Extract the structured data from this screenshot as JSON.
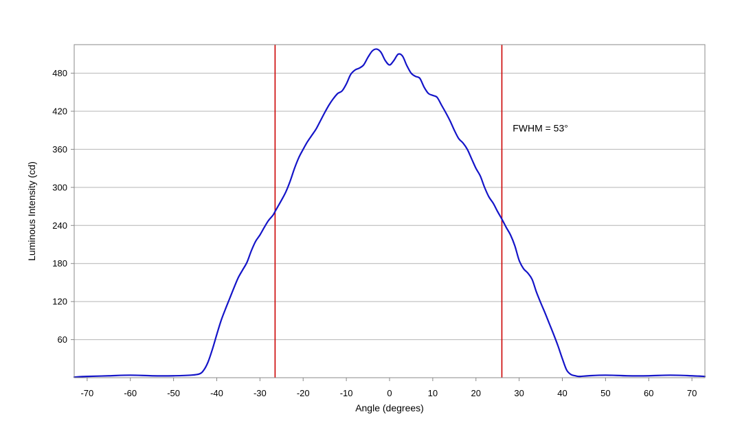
{
  "chart_data": {
    "type": "line",
    "title": "",
    "xlabel": "Angle (degrees)",
    "ylabel": "Luminous Intensity (cd)",
    "xlim": [
      -73,
      73
    ],
    "ylim": [
      0,
      525
    ],
    "x_ticks": [
      -70,
      -60,
      -50,
      -40,
      -30,
      -20,
      -10,
      0,
      10,
      20,
      30,
      40,
      50,
      60,
      70
    ],
    "y_ticks": [
      60,
      120,
      180,
      240,
      300,
      360,
      420,
      480
    ],
    "grid": {
      "horizontal": true,
      "vertical": false
    },
    "series": [
      {
        "color": "#1414c8",
        "x": [
          -73,
          -70,
          -65,
          -60,
          -55,
          -50,
          -46,
          -44,
          -43,
          -42,
          -41,
          -40,
          -39,
          -38,
          -37,
          -36,
          -35,
          -34,
          -33,
          -32,
          -31,
          -30,
          -29,
          -28,
          -27,
          -26.5,
          -26,
          -25,
          -24,
          -23,
          -22,
          -21,
          -20,
          -19,
          -18,
          -17,
          -16,
          -15,
          -14,
          -13,
          -12,
          -11,
          -10,
          -9,
          -8,
          -7,
          -6,
          -5,
          -4,
          -3,
          -2,
          -1,
          0,
          1,
          2,
          3,
          4,
          5,
          6,
          7,
          8,
          9,
          10,
          11,
          12,
          13,
          14,
          15,
          16,
          17,
          18,
          19,
          20,
          21,
          22,
          23,
          24,
          25,
          26,
          27,
          28,
          29,
          30,
          31,
          32,
          33,
          34,
          35,
          36,
          37,
          38,
          39,
          40,
          41,
          42,
          43,
          44,
          46,
          50,
          55,
          60,
          65,
          70,
          73
        ],
        "y": [
          1,
          2,
          3,
          4,
          3,
          3,
          4,
          6,
          12,
          25,
          45,
          68,
          90,
          108,
          125,
          142,
          158,
          170,
          182,
          200,
          215,
          225,
          237,
          248,
          256,
          262,
          268,
          280,
          293,
          310,
          330,
          347,
          360,
          372,
          382,
          392,
          405,
          418,
          430,
          440,
          448,
          452,
          463,
          478,
          485,
          488,
          493,
          505,
          515,
          518,
          513,
          500,
          493,
          500,
          510,
          507,
          492,
          480,
          475,
          472,
          458,
          448,
          445,
          442,
          430,
          418,
          405,
          390,
          377,
          370,
          360,
          345,
          330,
          318,
          300,
          285,
          275,
          262,
          250,
          237,
          225,
          208,
          185,
          172,
          165,
          155,
          135,
          118,
          102,
          85,
          68,
          50,
          30,
          12,
          5,
          3,
          2,
          3,
          4,
          3,
          3,
          4,
          3,
          2
        ]
      }
    ],
    "vertical_lines": [
      {
        "x": -26.5,
        "color": "#cc0000"
      },
      {
        "x": 26,
        "color": "#cc0000"
      }
    ],
    "annotations": [
      {
        "text": "FWHM = 53°",
        "x": 28.5,
        "y": 388
      }
    ]
  }
}
